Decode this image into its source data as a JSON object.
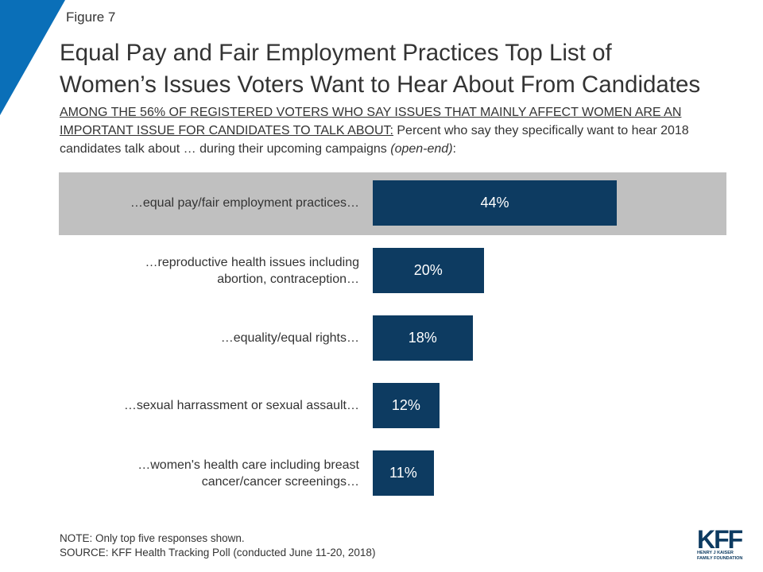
{
  "figure_label": "Figure 7",
  "title_line1": "Equal Pay and Fair Employment Practices Top List of",
  "title_line2": "Women’s Issues Voters Want to Hear About From Candidates",
  "subtitle_underlined": "AMONG THE 56% OF REGISTERED VOTERS WHO SAY ISSUES THAT MAINLY AFFECT WOMEN ARE AN IMPORTANT ISSUE FOR CANDIDATES TO TALK ABOUT:",
  "subtitle_rest": " Percent who say they specifically want to hear 2018 candidates talk about … during their upcoming campaigns ",
  "subtitle_italic": "(open-end)",
  "subtitle_end": ":",
  "colors": {
    "bar": "#0d3b61",
    "highlight": "#c0c0c0",
    "corner": "#0a6fb8"
  },
  "chart_data": {
    "type": "bar",
    "orientation": "horizontal",
    "categories": [
      [
        "…equal pay/fair employment practices…"
      ],
      [
        "…reproductive health issues including",
        "abortion, contraception…"
      ],
      [
        "…equality/equal rights…"
      ],
      [
        "…sexual harrassment or sexual assault…"
      ],
      [
        "…women's health care including breast",
        "cancer/cancer screenings…"
      ]
    ],
    "values": [
      44,
      20,
      18,
      12,
      11
    ],
    "value_labels": [
      "44%",
      "20%",
      "18%",
      "12%",
      "11%"
    ],
    "highlighted_index": 0
  },
  "footer": {
    "note": "NOTE: Only top five responses shown.",
    "source": "SOURCE: KFF Health Tracking Poll (conducted June 11-20, 2018)"
  },
  "logo": {
    "text": "KFF",
    "sub_line1": "HENRY J KAISER",
    "sub_line2": "FAMILY FOUNDATION"
  }
}
